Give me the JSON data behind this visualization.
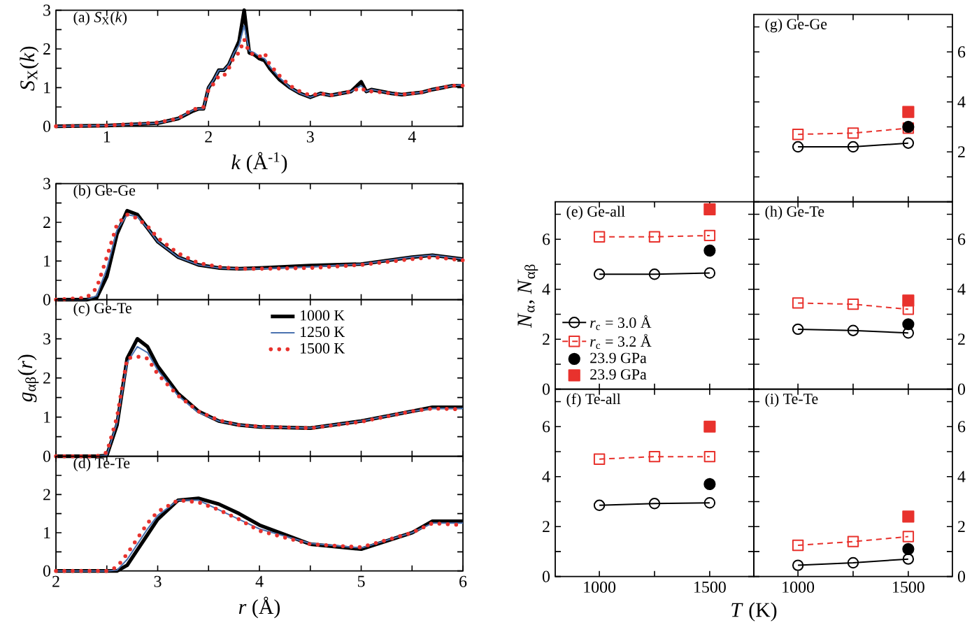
{
  "chart_data": [
    {
      "type": "line",
      "title": "(a) *S*$_{X}$(*k*)",
      "xlabel": "*k* (Å$^{-1}$)",
      "ylabel": "*S*$_{X}$(*k*)",
      "xlim": [
        0.5,
        4.5
      ],
      "ylim": [
        0,
        3
      ],
      "xticks": [
        1,
        {
          "value": 1.5,
          "label": null
        },
        2,
        {
          "value": 2.5,
          "label": null
        },
        3,
        {
          "value": 3.5,
          "label": null
        },
        4
      ],
      "yticks": [
        0,
        {
          "value": 0.5,
          "label": null
        },
        1,
        {
          "value": 1.5,
          "label": null
        },
        2,
        {
          "value": 2.5,
          "label": null
        },
        3
      ],
      "marker": "none",
      "x": [
        0.5,
        1.0,
        1.5,
        1.7,
        1.85,
        1.9,
        1.95,
        2.0,
        2.05,
        2.1,
        2.15,
        2.2,
        2.25,
        2.3,
        2.35,
        2.4,
        2.45,
        2.5,
        2.55,
        2.6,
        2.7,
        2.8,
        2.9,
        3.0,
        3.1,
        3.2,
        3.3,
        3.4,
        3.5,
        3.55,
        3.6,
        3.7,
        3.8,
        3.9,
        4.0,
        4.1,
        4.2,
        4.3,
        4.4,
        4.5
      ],
      "series": [
        {
          "color": "#000000",
          "line_style": "solid",
          "values": [
            0,
            0.02,
            0.08,
            0.2,
            0.4,
            0.45,
            0.45,
            1.0,
            1.2,
            1.45,
            1.45,
            1.6,
            1.9,
            2.2,
            3.0,
            1.9,
            1.85,
            1.75,
            1.7,
            1.5,
            1.2,
            1.0,
            0.85,
            0.75,
            0.85,
            0.8,
            0.85,
            0.9,
            1.15,
            0.9,
            0.95,
            0.9,
            0.85,
            0.82,
            0.85,
            0.88,
            0.95,
            1.0,
            1.05,
            1.05
          ]
        },
        {
          "color": "#4a72b0",
          "line_style": "solid",
          "values": [
            0,
            0.02,
            0.08,
            0.2,
            0.42,
            0.45,
            0.45,
            1.0,
            1.2,
            1.45,
            1.45,
            1.6,
            1.9,
            2.1,
            2.6,
            1.95,
            1.9,
            1.8,
            1.75,
            1.55,
            1.25,
            1.0,
            0.85,
            0.75,
            0.85,
            0.8,
            0.85,
            0.9,
            1.05,
            0.9,
            0.95,
            0.9,
            0.85,
            0.82,
            0.85,
            0.88,
            0.95,
            1.0,
            1.05,
            1.08
          ]
        },
        {
          "color": "#e8322d",
          "line_style": "dotted",
          "values": [
            0,
            0.02,
            0.1,
            0.2,
            0.45,
            0.45,
            0.5,
            0.95,
            1.1,
            1.3,
            1.3,
            1.5,
            1.8,
            1.9,
            2.25,
            1.9,
            1.85,
            1.8,
            1.9,
            1.6,
            1.3,
            1.05,
            0.9,
            0.8,
            0.85,
            0.8,
            0.85,
            0.9,
            1.0,
            0.9,
            0.9,
            0.88,
            0.85,
            0.82,
            0.85,
            0.88,
            0.95,
            1.0,
            1.05,
            1.05
          ]
        }
      ]
    },
    {
      "type": "line",
      "title": "(b) Ge-Ge",
      "xlim": [
        2,
        6
      ],
      "ylim": [
        0,
        3
      ],
      "xticks": [
        2,
        {
          "value": 2.5,
          "label": null
        },
        3,
        {
          "value": 3.5,
          "label": null
        },
        4,
        {
          "value": 4.5,
          "label": null
        },
        5,
        {
          "value": 5.5,
          "label": null
        },
        6
      ],
      "yticks": [
        0,
        {
          "value": 0.5,
          "label": null
        },
        1,
        {
          "value": 1.5,
          "label": null
        },
        2,
        {
          "value": 2.5,
          "label": null
        },
        3
      ],
      "tick_labels": "y",
      "marker": "none",
      "x": [
        2.0,
        2.3,
        2.4,
        2.5,
        2.6,
        2.7,
        2.8,
        2.9,
        3.0,
        3.2,
        3.4,
        3.6,
        3.8,
        4.0,
        4.5,
        5.0,
        5.5,
        5.7,
        6.0
      ],
      "series": [
        {
          "color": "#000000",
          "line_style": "solid",
          "values": [
            0,
            0,
            0.05,
            0.6,
            1.7,
            2.3,
            2.2,
            1.85,
            1.5,
            1.1,
            0.9,
            0.82,
            0.8,
            0.82,
            0.88,
            0.92,
            1.1,
            1.15,
            1.05
          ]
        },
        {
          "color": "#4a72b0",
          "line_style": "solid",
          "values": [
            0,
            0,
            0.1,
            0.8,
            1.8,
            2.2,
            2.15,
            1.85,
            1.5,
            1.1,
            0.9,
            0.82,
            0.8,
            0.8,
            0.85,
            0.92,
            1.1,
            1.15,
            1.05
          ]
        },
        {
          "color": "#e8322d",
          "line_style": "dotted",
          "values": [
            0,
            0.05,
            0.3,
            1.1,
            1.95,
            2.2,
            2.1,
            1.9,
            1.6,
            1.2,
            0.95,
            0.85,
            0.8,
            0.8,
            0.82,
            0.9,
            1.05,
            1.1,
            1.02
          ]
        }
      ]
    },
    {
      "type": "line",
      "title": "(c) Ge-Te",
      "ylabel": "*g*$_{αβ}$(*r*)",
      "xlim": [
        2,
        6
      ],
      "ylim": [
        0,
        4
      ],
      "xticks": [
        2,
        {
          "value": 2.5,
          "label": null
        },
        3,
        {
          "value": 3.5,
          "label": null
        },
        4,
        {
          "value": 4.5,
          "label": null
        },
        5,
        {
          "value": 5.5,
          "label": null
        },
        6
      ],
      "yticks": [
        0,
        {
          "value": 0.5,
          "label": null
        },
        1,
        {
          "value": 1.5,
          "label": null
        },
        2,
        {
          "value": 2.5,
          "label": null
        },
        3,
        {
          "value": 3.5,
          "label": null
        }
      ],
      "tick_labels": "y",
      "marker": "none",
      "legend": "top",
      "x": [
        2.0,
        2.3,
        2.4,
        2.5,
        2.6,
        2.7,
        2.8,
        2.9,
        3.0,
        3.2,
        3.4,
        3.6,
        3.8,
        4.0,
        4.5,
        5.0,
        5.5,
        5.7,
        6.0
      ],
      "series": [
        {
          "name": "1000 K",
          "color": "#000000",
          "line_style": "solid",
          "values": [
            0,
            0,
            0,
            0.02,
            0.8,
            2.5,
            3.0,
            2.8,
            2.3,
            1.6,
            1.15,
            0.9,
            0.8,
            0.75,
            0.72,
            0.9,
            1.15,
            1.25,
            1.25
          ]
        },
        {
          "name": "1250 K",
          "color": "#4a72b0",
          "line_style": "solid",
          "values": [
            null,
            null,
            0,
            0.03,
            0.85,
            2.4,
            2.8,
            2.65,
            2.2,
            1.55,
            1.12,
            0.9,
            0.8,
            0.75,
            0.72,
            0.9,
            1.15,
            1.22,
            1.22
          ]
        },
        {
          "name": "1500 K",
          "color": "#e8322d",
          "line_style": "dotted",
          "values": [
            0,
            0,
            0,
            0.1,
            1.0,
            2.5,
            2.55,
            2.5,
            2.1,
            1.55,
            1.15,
            0.92,
            0.8,
            0.76,
            0.72,
            0.88,
            1.15,
            1.22,
            1.2
          ]
        }
      ]
    },
    {
      "type": "line",
      "title": "(d) Te-Te",
      "xlabel": "*r* (Å)",
      "xlim": [
        2,
        6
      ],
      "ylim": [
        0,
        3
      ],
      "xticks": [
        2,
        {
          "value": 2.5,
          "label": null
        },
        3,
        {
          "value": 3.5,
          "label": null
        },
        4,
        {
          "value": 4.5,
          "label": null
        },
        5,
        {
          "value": 5.5,
          "label": null
        },
        6
      ],
      "yticks": [
        0,
        {
          "value": 0.5,
          "label": null
        },
        1,
        {
          "value": 1.5,
          "label": null
        },
        2,
        {
          "value": 2.5,
          "label": null
        }
      ],
      "marker": "none",
      "x": [
        2.0,
        2.3,
        2.4,
        2.5,
        2.6,
        2.7,
        2.8,
        2.9,
        3.0,
        3.2,
        3.4,
        3.6,
        3.8,
        4.0,
        4.5,
        5.0,
        5.5,
        5.7,
        6.0
      ],
      "series": [
        {
          "color": "#000000",
          "line_style": "solid",
          "values": [
            0,
            0,
            0,
            0,
            0,
            0.15,
            0.55,
            0.95,
            1.35,
            1.85,
            1.9,
            1.75,
            1.5,
            1.2,
            0.7,
            0.57,
            1.0,
            1.3,
            1.3
          ]
        },
        {
          "color": "#4a72b0",
          "line_style": "solid",
          "values": [
            0,
            0,
            0,
            0,
            0.02,
            0.3,
            0.7,
            1.1,
            1.45,
            1.85,
            1.85,
            1.6,
            1.35,
            1.1,
            0.72,
            0.6,
            1.0,
            1.25,
            1.25
          ]
        },
        {
          "color": "#e8322d",
          "line_style": "dotted",
          "values": [
            0,
            0,
            0,
            0,
            0.1,
            0.45,
            0.85,
            1.25,
            1.55,
            1.85,
            1.8,
            1.6,
            1.35,
            1.05,
            0.7,
            0.62,
            1.0,
            1.25,
            1.2
          ]
        }
      ]
    },
    {
      "type": "line",
      "title": "(e) Ge-all",
      "ylabel": "*N*$_{α}$, *N*$_{αβ}$",
      "xlim": [
        800,
        1700
      ],
      "ylim": [
        0,
        7.5
      ],
      "xticks": [
        1000,
        {
          "value": 1250,
          "label": null
        },
        1500
      ],
      "yticks": [
        0,
        {
          "value": 1,
          "label": null
        },
        2,
        {
          "value": 3,
          "label": null
        },
        4,
        {
          "value": 5,
          "label": null
        },
        6,
        {
          "value": 7,
          "label": null
        }
      ],
      "tick_labels": "y",
      "legend": "bottom left",
      "x": [
        1000,
        1250,
        1500
      ],
      "series": [
        {
          "name": "*r*$_{c}$ = 3.0 Å",
          "color": "#000000",
          "marker": "circle",
          "line_style": "solid",
          "values": [
            4.6,
            4.6,
            4.65
          ]
        },
        {
          "name": "*r*$_{c}$ = 3.2 Å",
          "color": "#e8322d",
          "marker": "square",
          "line_style": "dashed",
          "values": [
            6.1,
            6.1,
            6.15
          ]
        },
        {
          "name": "23.9 GPa",
          "type": "scatter",
          "color": "#000000",
          "marker": "circle",
          "values": [
            null,
            null,
            5.55
          ]
        },
        {
          "name": "23.9 GPa",
          "type": "scatter",
          "color": "#e8322d",
          "marker": "square",
          "values": [
            null,
            null,
            7.2
          ]
        }
      ]
    },
    {
      "type": "line",
      "title": "(f) Te-all",
      "xlabel": "*T* (K)",
      "xlim": [
        800,
        1700
      ],
      "ylim": [
        0,
        7.5
      ],
      "xticks": [
        1000,
        {
          "value": 1250,
          "label": null
        },
        1500
      ],
      "yticks": [
        0,
        {
          "value": 1,
          "label": null
        },
        2,
        {
          "value": 3,
          "label": null
        },
        4,
        {
          "value": 5,
          "label": null
        },
        6,
        {
          "value": 7,
          "label": null
        }
      ],
      "x": [
        1000,
        1250,
        1500
      ],
      "series": [
        {
          "color": "#000000",
          "marker": "circle",
          "line_style": "solid",
          "values": [
            2.85,
            2.92,
            2.95
          ]
        },
        {
          "color": "#e8322d",
          "marker": "square",
          "line_style": "dashed",
          "values": [
            4.7,
            4.8,
            4.8
          ]
        },
        {
          "type": "scatter",
          "color": "#000000",
          "marker": "circle",
          "values": [
            null,
            null,
            3.7
          ]
        },
        {
          "type": "scatter",
          "color": "#e8322d",
          "marker": "square",
          "values": [
            null,
            null,
            6.0
          ]
        }
      ]
    },
    {
      "type": "line",
      "title": "(g) Ge-Ge",
      "xlim": [
        800,
        1700
      ],
      "ylim": [
        0,
        7.5
      ],
      "xticks": [
        1000,
        {
          "value": 1250,
          "label": null
        },
        1500
      ],
      "yticks": [
        {
          "value": 0,
          "label": null
        },
        {
          "value": 1,
          "label": null
        },
        2,
        {
          "value": 3,
          "label": null
        },
        4,
        {
          "value": 5,
          "label": null
        },
        6,
        {
          "value": 7,
          "label": null
        }
      ],
      "tick_labels": "y",
      "x": [
        1000,
        1250,
        1500
      ],
      "series": [
        {
          "color": "#000000",
          "marker": "circle",
          "line_style": "solid",
          "values": [
            2.2,
            2.2,
            2.35
          ]
        },
        {
          "color": "#e8322d",
          "marker": "square",
          "line_style": "dashed",
          "values": [
            2.7,
            2.75,
            2.95
          ]
        },
        {
          "type": "scatter",
          "color": "#000000",
          "marker": "circle",
          "values": [
            null,
            null,
            3.0
          ]
        },
        {
          "type": "scatter",
          "color": "#e8322d",
          "marker": "square",
          "values": [
            null,
            null,
            3.6
          ]
        }
      ]
    },
    {
      "type": "line",
      "title": "(h) Ge-Te",
      "xlim": [
        800,
        1700
      ],
      "ylim": [
        0,
        7.5
      ],
      "xticks": [
        1000,
        {
          "value": 1250,
          "label": null
        },
        1500
      ],
      "yticks": [
        0,
        {
          "value": 1,
          "label": null
        },
        2,
        {
          "value": 3,
          "label": null
        },
        4,
        {
          "value": 5,
          "label": null
        },
        6,
        {
          "value": 7,
          "label": null
        }
      ],
      "tick_labels": "y",
      "x": [
        1000,
        1250,
        1500
      ],
      "series": [
        {
          "color": "#000000",
          "marker": "circle",
          "line_style": "solid",
          "values": [
            2.4,
            2.35,
            2.25
          ]
        },
        {
          "color": "#e8322d",
          "marker": "square",
          "line_style": "dashed",
          "values": [
            3.45,
            3.4,
            3.2
          ]
        },
        {
          "type": "scatter",
          "color": "#000000",
          "marker": "circle",
          "values": [
            null,
            null,
            2.6
          ]
        },
        {
          "type": "scatter",
          "color": "#e8322d",
          "marker": "square",
          "values": [
            null,
            null,
            3.55
          ]
        }
      ]
    },
    {
      "type": "line",
      "title": "(i) Te-Te",
      "xlim": [
        800,
        1700
      ],
      "ylim": [
        0,
        7.5
      ],
      "xticks": [
        1000,
        {
          "value": 1250,
          "label": null
        },
        1500
      ],
      "yticks": [
        0,
        {
          "value": 1,
          "label": null
        },
        2,
        {
          "value": 3,
          "label": null
        },
        4,
        {
          "value": 5,
          "label": null
        },
        6,
        {
          "value": 7,
          "label": null
        }
      ],
      "x": [
        1000,
        1250,
        1500
      ],
      "series": [
        {
          "color": "#000000",
          "marker": "circle",
          "line_style": "solid",
          "values": [
            0.45,
            0.55,
            0.7
          ]
        },
        {
          "color": "#e8322d",
          "marker": "square",
          "line_style": "dashed",
          "values": [
            1.25,
            1.4,
            1.6
          ]
        },
        {
          "type": "scatter",
          "color": "#000000",
          "marker": "circle",
          "values": [
            null,
            null,
            1.1
          ]
        },
        {
          "type": "scatter",
          "color": "#e8322d",
          "marker": "square",
          "values": [
            null,
            null,
            2.4
          ]
        }
      ]
    }
  ]
}
